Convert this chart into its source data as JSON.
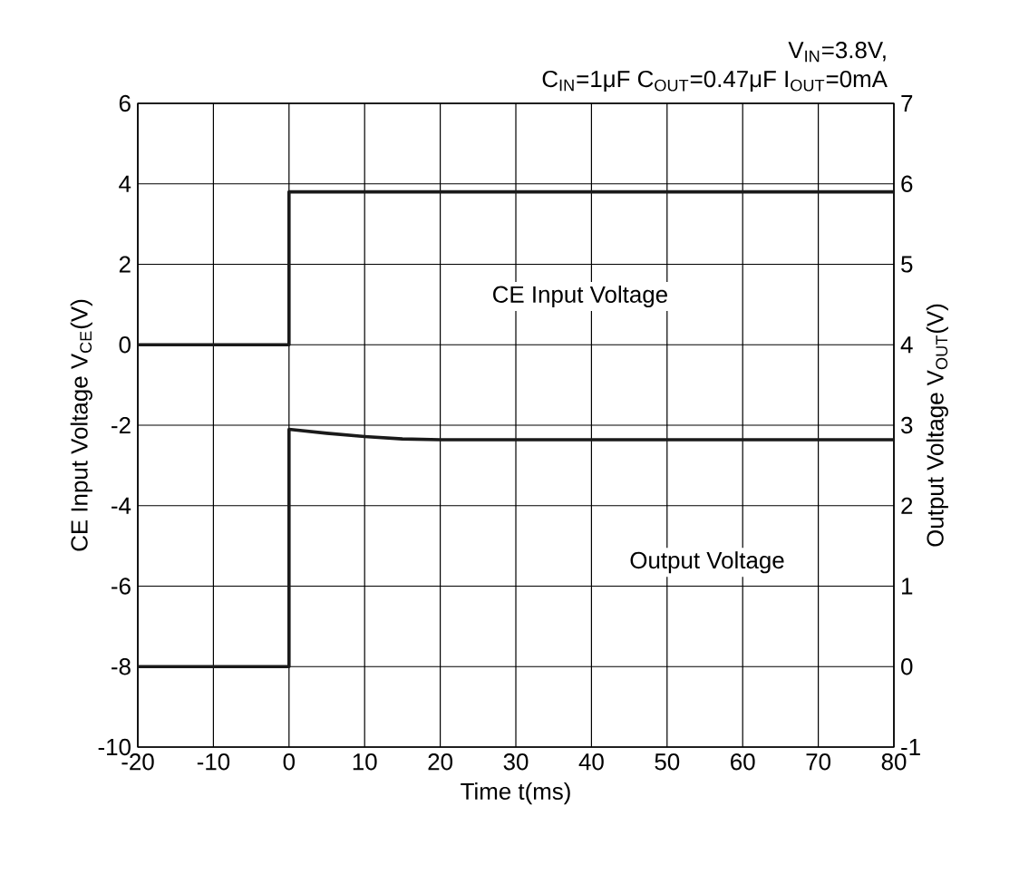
{
  "chart_data": {
    "type": "line",
    "title": "V$_{IN}$=3.8V,",
    "subtitle": "C$_{IN}$=1μF C$_{OUT}$=0.47μF I$_{OUT}$=0mA",
    "xlabel": "Time t(ms)",
    "ylabel": "CE Input Voltage V$_{CE}$(V)",
    "y2label": "Output Voltage V$_{OUT}$(V)",
    "xlim": [
      -20,
      80
    ],
    "xticks": [
      -20,
      -10,
      0,
      10,
      20,
      30,
      40,
      50,
      60,
      70,
      80
    ],
    "ylim": [
      -10,
      6
    ],
    "yticks": [
      -10,
      -8,
      -6,
      -4,
      -2,
      0,
      2,
      4,
      6
    ],
    "y2lim": [
      -1,
      7
    ],
    "y2ticks": [
      -1,
      0,
      1,
      2,
      3,
      4,
      5,
      6,
      7
    ],
    "grid": true,
    "line_style": "solid",
    "marker": "none",
    "series": [
      {
        "color": "#1a1a1a",
        "x": [
          -20,
          -10,
          0,
          0,
          10,
          20,
          40,
          60,
          80
        ],
        "values": [
          0,
          0,
          0,
          3.8,
          3.8,
          3.8,
          3.8,
          3.8,
          3.8
        ]
      },
      {
        "color": "#1a1a1a",
        "axis": "y2",
        "x": [
          -20,
          -10,
          0,
          0,
          5,
          10,
          15,
          20,
          40,
          60,
          80
        ],
        "values": [
          0,
          0,
          0,
          2.95,
          2.9,
          2.86,
          2.83,
          2.82,
          2.82,
          2.82,
          2.82
        ]
      }
    ],
    "annotations": [
      "CE Input Voltage",
      "Output Voltage"
    ]
  }
}
